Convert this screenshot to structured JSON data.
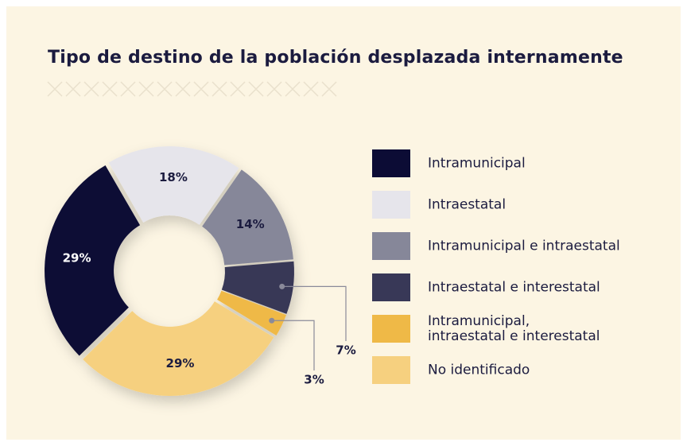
{
  "chart_data": {
    "type": "donut",
    "title": "Tipo de destino de la población desplazada internamente",
    "categories": [
      "Intramunicipal",
      "Intraestatal",
      "Intramunicipal e intraestatal",
      "Intraestatal e interestatal",
      "Intramunicipal,\nintraestatal e interestatal",
      "No identificado"
    ],
    "values": [
      29,
      18,
      14,
      7,
      3,
      29
    ],
    "value_labels": [
      "29%",
      "18%",
      "14%",
      "7%",
      "3%",
      "29%"
    ],
    "colors": [
      "#0c0c35",
      "#e6e5eb",
      "#868799",
      "#383857",
      "#efb947",
      "#f6d07f"
    ]
  }
}
